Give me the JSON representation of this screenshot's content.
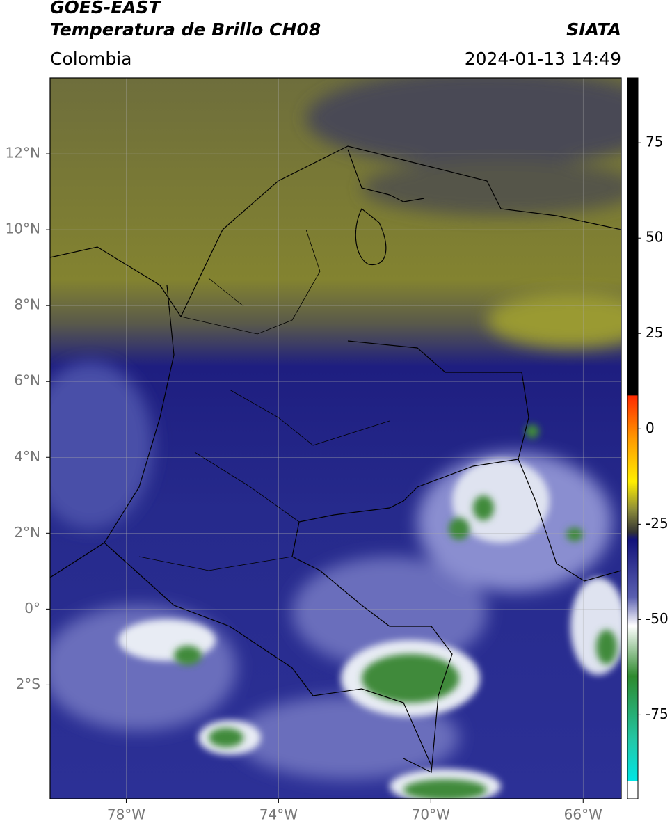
{
  "header": {
    "title": "GOES-EAST",
    "subtitle": "Temperatura de Brillo CH08",
    "source": "SIATA",
    "region": "Colombia",
    "datetime": "2024-01-13 14:49"
  },
  "map": {
    "xlim": [
      -80,
      -65
    ],
    "ylim": [
      -5,
      14
    ],
    "xticks": [
      {
        "value": -78,
        "label": "78°W"
      },
      {
        "value": -74,
        "label": "74°W"
      },
      {
        "value": -70,
        "label": "70°W"
      },
      {
        "value": -66,
        "label": "66°W"
      }
    ],
    "yticks": [
      {
        "value": 12,
        "label": "12°N"
      },
      {
        "value": 10,
        "label": "10°N"
      },
      {
        "value": 8,
        "label": "8°N"
      },
      {
        "value": 6,
        "label": "6°N"
      },
      {
        "value": 4,
        "label": "4°N"
      },
      {
        "value": 2,
        "label": "2°N"
      },
      {
        "value": 0,
        "label": "0°"
      },
      {
        "value": -2,
        "label": "2°S"
      }
    ]
  },
  "colorbar": {
    "lim": [
      -97,
      92
    ],
    "ticks": [
      75,
      50,
      25,
      0,
      -25,
      -50,
      -75
    ]
  }
}
